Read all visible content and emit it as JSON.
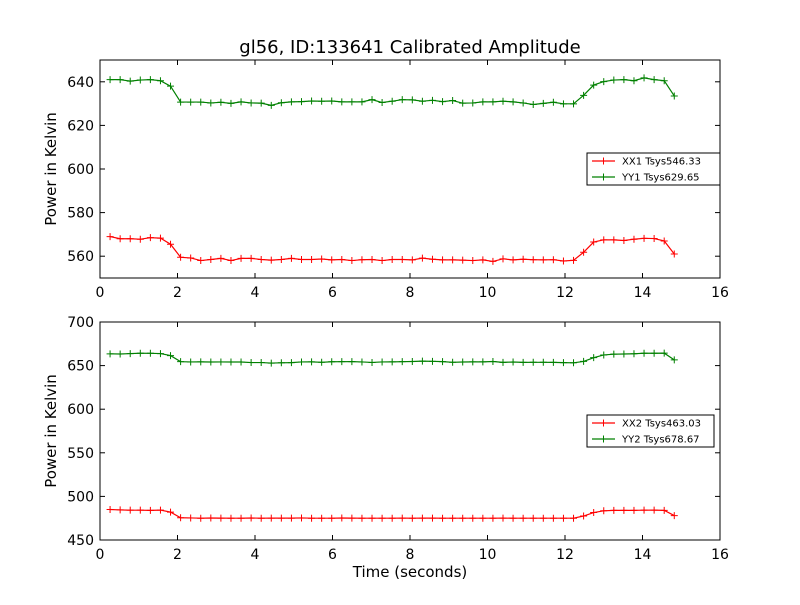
{
  "figure": {
    "title": "gl56, ID:133641 Calibrated Amplitude"
  },
  "chart_data": [
    {
      "type": "line",
      "title": "gl56, ID:133641 Calibrated Amplitude",
      "xlabel": "",
      "ylabel": "Power in Kelvin",
      "xlim": [
        0,
        16
      ],
      "ylim": [
        550,
        650
      ],
      "xticks": [
        "0",
        "2",
        "4",
        "6",
        "8",
        "10",
        "12",
        "14",
        "16"
      ],
      "yticks": [
        "560",
        "580",
        "600",
        "620",
        "640"
      ],
      "grid": false,
      "legend_position": "right",
      "x": [
        0.26,
        0.52,
        0.78,
        1.04,
        1.3,
        1.56,
        1.82,
        2.08,
        2.34,
        2.6,
        2.86,
        3.12,
        3.38,
        3.64,
        3.9,
        4.16,
        4.42,
        4.68,
        4.94,
        5.2,
        5.46,
        5.72,
        5.98,
        6.24,
        6.5,
        6.76,
        7.02,
        7.28,
        7.54,
        7.8,
        8.06,
        8.32,
        8.58,
        8.84,
        9.1,
        9.36,
        9.62,
        9.88,
        10.14,
        10.4,
        10.66,
        10.92,
        11.18,
        11.44,
        11.7,
        11.96,
        12.22,
        12.48,
        12.74,
        13.0,
        13.26,
        13.52,
        13.78,
        14.04,
        14.3,
        14.56,
        14.82
      ],
      "series": [
        {
          "name": "XX1 Tsys546.33",
          "color": "#ff0000",
          "values": [
            569,
            568,
            568,
            567.8,
            568.5,
            568.3,
            565.5,
            559.5,
            559.2,
            558,
            558.5,
            559,
            558,
            559,
            559,
            558.5,
            558.2,
            558.5,
            559,
            558.5,
            558.5,
            558.7,
            558.3,
            558.5,
            558,
            558.4,
            558.5,
            558,
            558.5,
            558.5,
            558.3,
            559.1,
            558.6,
            558.3,
            558.3,
            558.2,
            558,
            558.3,
            557.6,
            558.8,
            558.3,
            558.6,
            558.4,
            558.3,
            558.4,
            557.8,
            558.1,
            561.8,
            566.5,
            567.5,
            567.5,
            567.2,
            567.8,
            568.2,
            568.1,
            567,
            561
          ]
        },
        {
          "name": "YY1 Tsys629.65",
          "color": "#008000",
          "values": [
            641,
            641,
            640.3,
            640.8,
            641,
            640.5,
            638,
            630.7,
            630.7,
            630.7,
            630.3,
            630.6,
            630.1,
            630.8,
            630.3,
            630.2,
            629.2,
            630.4,
            630.8,
            630.9,
            631.2,
            631.1,
            631.2,
            630.8,
            630.8,
            630.8,
            631.8,
            630.5,
            631.1,
            631.8,
            631.7,
            631.1,
            631.5,
            630.9,
            631.4,
            630.2,
            630.3,
            630.8,
            630.8,
            631.1,
            630.8,
            630.3,
            629.6,
            630.1,
            630.6,
            629.9,
            629.9,
            633.8,
            638.5,
            640.1,
            640.8,
            641,
            640.5,
            641.8,
            641,
            640.5,
            633.5
          ]
        }
      ]
    },
    {
      "type": "line",
      "title": "",
      "xlabel": "Time (seconds)",
      "ylabel": "Power in Kelvin",
      "xlim": [
        0,
        16
      ],
      "ylim": [
        450,
        700
      ],
      "xticks": [
        "0",
        "2",
        "4",
        "6",
        "8",
        "10",
        "12",
        "14",
        "16"
      ],
      "yticks": [
        "450",
        "500",
        "550",
        "600",
        "650",
        "700"
      ],
      "grid": false,
      "legend_position": "right",
      "x": [
        0.26,
        0.52,
        0.78,
        1.04,
        1.3,
        1.56,
        1.82,
        2.08,
        2.34,
        2.6,
        2.86,
        3.12,
        3.38,
        3.64,
        3.9,
        4.16,
        4.42,
        4.68,
        4.94,
        5.2,
        5.46,
        5.72,
        5.98,
        6.24,
        6.5,
        6.76,
        7.02,
        7.28,
        7.54,
        7.8,
        8.06,
        8.32,
        8.58,
        8.84,
        9.1,
        9.36,
        9.62,
        9.88,
        10.14,
        10.4,
        10.66,
        10.92,
        11.18,
        11.44,
        11.7,
        11.96,
        12.22,
        12.48,
        12.74,
        13.0,
        13.26,
        13.52,
        13.78,
        14.04,
        14.3,
        14.56,
        14.82
      ],
      "series": [
        {
          "name": "XX2 Tsys463.03",
          "color": "#ff0000",
          "values": [
            485,
            484.5,
            484.2,
            484.2,
            484,
            484.3,
            482,
            475.5,
            475.3,
            475,
            475.2,
            475.1,
            475,
            475,
            475.2,
            475,
            475.1,
            475.1,
            475.1,
            475.3,
            475,
            475,
            475,
            475.2,
            475.1,
            475,
            475,
            475,
            475,
            475.1,
            475,
            475.1,
            475.1,
            475,
            475,
            475,
            475,
            475,
            475,
            475.1,
            475,
            475,
            475,
            475,
            475,
            475,
            475,
            477.5,
            481.5,
            483.5,
            484,
            484,
            484,
            484.2,
            484.3,
            484,
            478
          ]
        },
        {
          "name": "YY2 Tsys678.67",
          "color": "#008000",
          "values": [
            663.5,
            663.3,
            663.8,
            664.2,
            664.1,
            663.8,
            661.5,
            654.5,
            654.2,
            654.3,
            654.1,
            654.2,
            654.1,
            654.1,
            653.5,
            653.5,
            652.9,
            653.2,
            653.4,
            654.2,
            654.3,
            653.8,
            654.4,
            654.5,
            654.6,
            654.2,
            653.6,
            654.2,
            654.3,
            654.5,
            654.7,
            655.1,
            654.9,
            654.6,
            653.8,
            654.1,
            654.3,
            654.3,
            654.7,
            653.7,
            654.1,
            653.7,
            653.8,
            653.8,
            653.7,
            653.4,
            653.2,
            654.8,
            659.1,
            662.2,
            663.1,
            663.3,
            663.6,
            664.2,
            664.2,
            664.3,
            656.5
          ]
        }
      ]
    }
  ]
}
